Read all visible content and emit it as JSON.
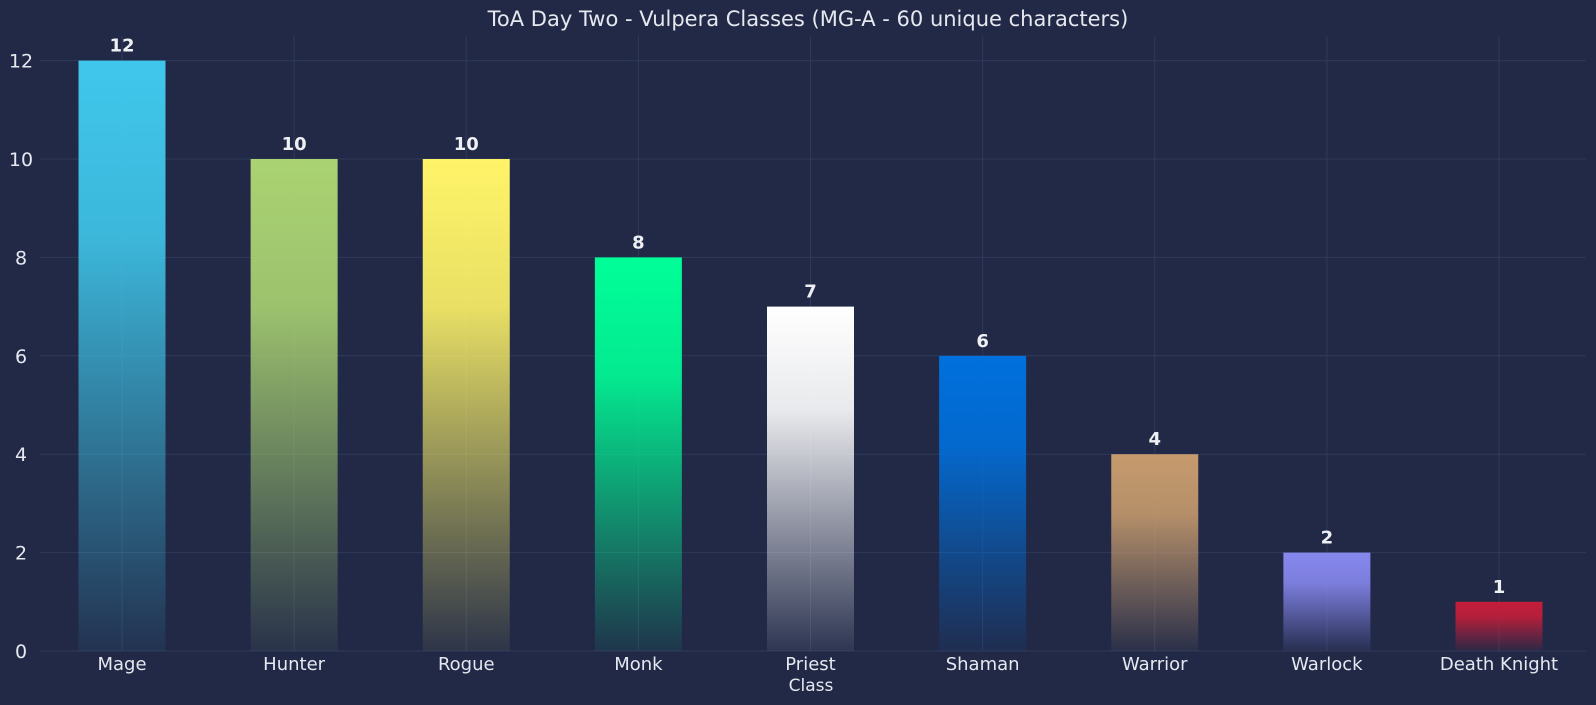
{
  "chart_data": {
    "type": "bar",
    "title": "ToA Day Two - Vulpera Classes (MG-A - 60 unique characters)",
    "xlabel": "Class",
    "ylabel": "",
    "ylim": [
      0,
      12.5
    ],
    "yticks": [
      0,
      2,
      4,
      6,
      8,
      10,
      12
    ],
    "grid": true,
    "categories": [
      "Mage",
      "Hunter",
      "Rogue",
      "Monk",
      "Priest",
      "Shaman",
      "Warrior",
      "Warlock",
      "Death Knight"
    ],
    "values": [
      12,
      10,
      10,
      8,
      7,
      6,
      4,
      2,
      1
    ],
    "colors": [
      "#3fc7eb",
      "#aad372",
      "#fff468",
      "#00ff98",
      "#ffffff",
      "#0070dd",
      "#c69b6d",
      "#8788ee",
      "#c41e3a"
    ],
    "background": "#212947"
  }
}
